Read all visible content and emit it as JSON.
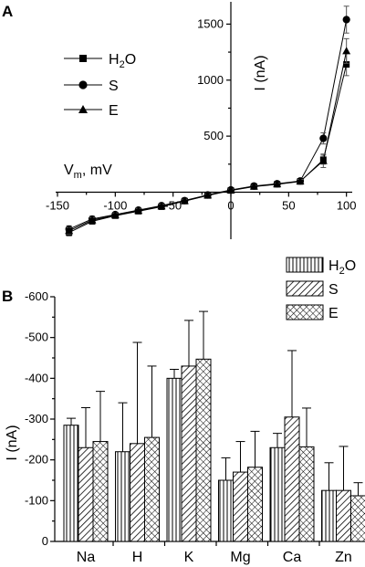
{
  "chart_data": [
    {
      "panel": "A",
      "type": "line",
      "xlabel": "V",
      "xlabel_sub": "m",
      "xlabel_unit": ", mV",
      "ylabel": "I (nA)",
      "xlim": [
        -150,
        105
      ],
      "ylim": [
        -420,
        1650
      ],
      "x_ticks": [
        -150,
        -100,
        -50,
        0,
        50,
        100
      ],
      "y_ticks": [
        500,
        1000,
        1500
      ],
      "legend_position": "top-left",
      "series": [
        {
          "name_main": "H",
          "name_sub": "2",
          "name_tail": "O",
          "marker": "square",
          "x": [
            -140,
            -120,
            -100,
            -80,
            -60,
            -40,
            -20,
            0,
            20,
            40,
            60,
            80,
            100
          ],
          "y": [
            -360,
            -260,
            -210,
            -170,
            -130,
            -80,
            -30,
            15,
            50,
            70,
            95,
            290,
            1140
          ],
          "err": [
            30,
            25,
            20,
            20,
            20,
            15,
            10,
            10,
            10,
            10,
            15,
            40,
            100
          ]
        },
        {
          "name": "S",
          "marker": "circle",
          "x": [
            -140,
            -120,
            -100,
            -80,
            -60,
            -40,
            -20,
            0,
            20,
            40,
            60,
            80,
            100
          ],
          "y": [
            -330,
            -240,
            -200,
            -160,
            -120,
            -75,
            -25,
            20,
            55,
            75,
            100,
            480,
            1540
          ],
          "err": [
            30,
            25,
            20,
            20,
            20,
            15,
            10,
            10,
            10,
            10,
            15,
            50,
            120
          ]
        },
        {
          "name": "E",
          "marker": "triangle",
          "x": [
            -140,
            -120,
            -100,
            -80,
            -60,
            -40,
            -20,
            0,
            20,
            40,
            60,
            80,
            100
          ],
          "y": [
            -345,
            -250,
            -205,
            -165,
            -125,
            -78,
            -28,
            18,
            52,
            72,
            98,
            280,
            1260
          ],
          "err": [
            30,
            25,
            20,
            20,
            20,
            15,
            10,
            10,
            10,
            10,
            15,
            60,
            110
          ]
        }
      ]
    },
    {
      "panel": "B",
      "type": "bar",
      "ylabel": "I (nA)",
      "categories": [
        "Na",
        "H",
        "K",
        "Mg",
        "Ca",
        "Zn"
      ],
      "ylim": [
        0,
        -600
      ],
      "y_ticks": [
        0,
        -100,
        -200,
        -300,
        -400,
        -500,
        -600
      ],
      "legend_position": "top-right",
      "series": [
        {
          "name_main": "H",
          "name_sub": "2",
          "name_tail": "O",
          "pattern": "vertical",
          "values": [
            -285,
            -220,
            -400,
            -150,
            -230,
            -125
          ],
          "err": [
            17,
            120,
            22,
            55,
            35,
            68
          ]
        },
        {
          "name": "S",
          "pattern": "diagonal",
          "values": [
            -230,
            -240,
            -430,
            -170,
            -305,
            -125
          ],
          "err": [
            98,
            248,
            112,
            75,
            163,
            108
          ]
        },
        {
          "name": "E",
          "pattern": "crosshatch",
          "values": [
            -245,
            -255,
            -447,
            -182,
            -232,
            -112
          ],
          "err": [
            123,
            175,
            117,
            88,
            95,
            32
          ]
        }
      ]
    }
  ]
}
